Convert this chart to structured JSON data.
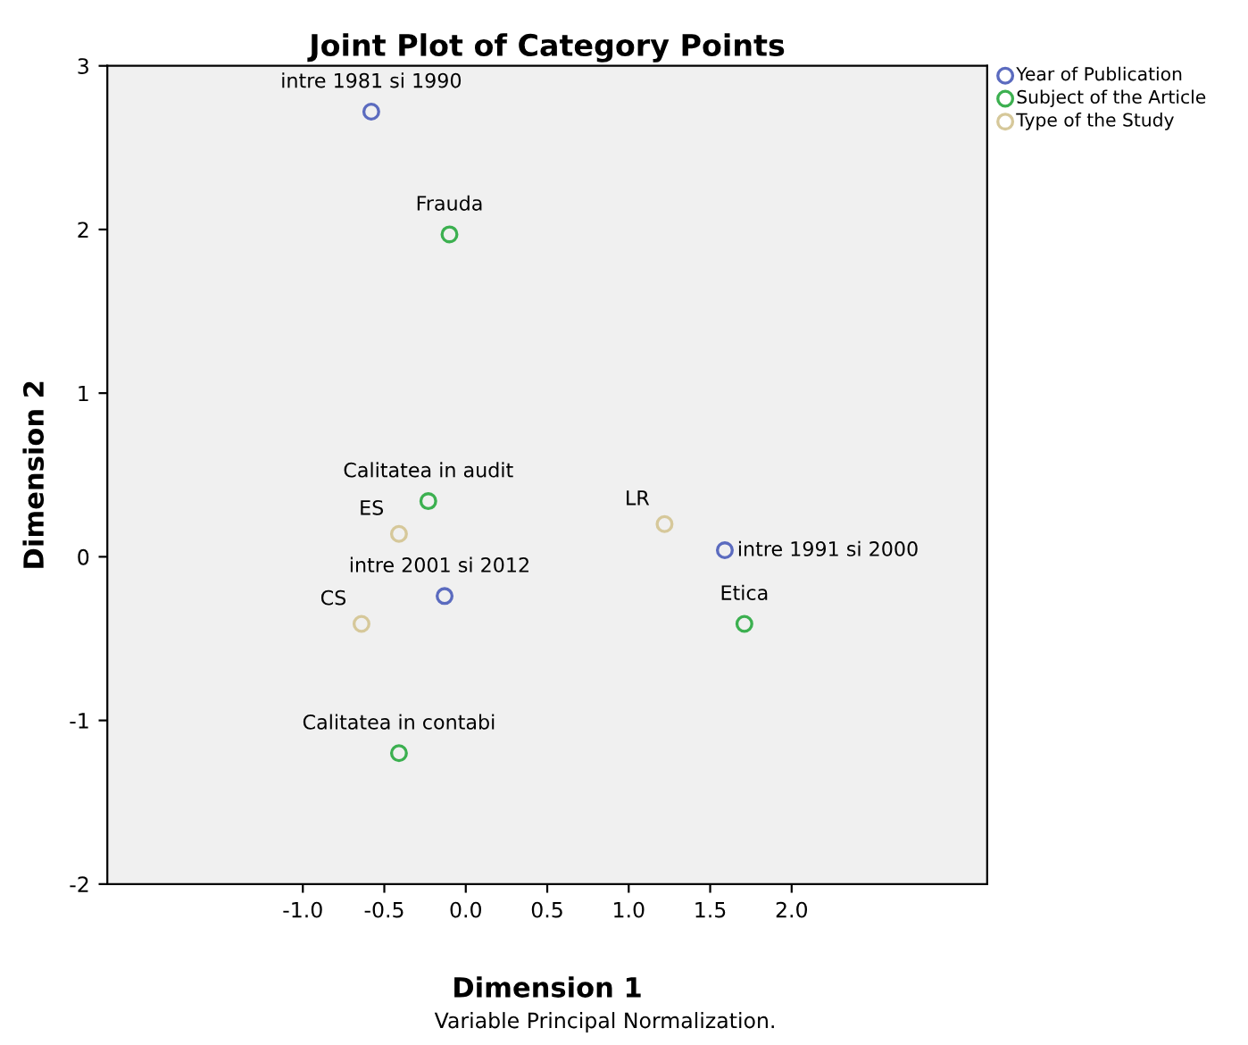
{
  "chart_data": {
    "type": "scatter",
    "title": "Joint Plot of Category Points",
    "xlabel": "Dimension 1",
    "ylabel": "Dimension 2",
    "series": [
      {
        "name": "Year of Publication",
        "color": "#5b6bbf",
        "x": [
          -0.58,
          1.59,
          -0.13
        ],
        "values": [
          2.72,
          0.04,
          -0.24
        ]
      },
      {
        "name": "Subject of the Article",
        "color": "#3cb050",
        "x": [
          -0.1,
          -0.23,
          1.71,
          -0.41
        ],
        "values": [
          1.97,
          0.34,
          -0.41,
          -1.2
        ]
      },
      {
        "name": "Type of the Study",
        "color": "#d6c89a",
        "x": [
          -0.41,
          1.22,
          -0.64
        ],
        "values": [
          0.14,
          0.2,
          -0.41
        ]
      }
    ],
    "xlim": [
      -2.2,
      3.2
    ],
    "ylim": [
      -2,
      3
    ],
    "xticks": [
      {
        "value": -1,
        "label": "-1.0"
      },
      {
        "value": -0.5,
        "label": "-0.5"
      },
      {
        "value": 0,
        "label": "0.0"
      },
      {
        "value": 0.5,
        "label": "0.5"
      },
      {
        "value": 1,
        "label": "1.0"
      },
      {
        "value": 1.5,
        "label": "1.5"
      },
      {
        "value": 2,
        "label": "2.0"
      }
    ],
    "yticks": [
      -2,
      -1,
      0,
      1,
      2,
      3
    ],
    "marker": "circle",
    "grid": false,
    "legend": "top right",
    "annotations": [
      {
        "text": "intre 1981 si 1990",
        "x": -0.58,
        "y": 2.72
      },
      {
        "text": "intre 1991 si 2000",
        "x": 1.59,
        "y": 0.04
      },
      {
        "text": "intre 2001 si 2012",
        "x": -0.13,
        "y": -0.24
      },
      {
        "text": "Frauda",
        "x": -0.1,
        "y": 1.97
      },
      {
        "text": "Calitatea in audit",
        "x": -0.23,
        "y": 0.34
      },
      {
        "text": "Etica",
        "x": 1.71,
        "y": -0.41
      },
      {
        "text": "Calitatea in contabi",
        "x": -0.41,
        "y": -1.2
      },
      {
        "text": "ES",
        "x": -0.41,
        "y": 0.14
      },
      {
        "text": "LR",
        "x": 1.22,
        "y": 0.2
      },
      {
        "text": "CS",
        "x": -0.64,
        "y": -0.41
      },
      "Variable Principal Normalization."
    ]
  }
}
